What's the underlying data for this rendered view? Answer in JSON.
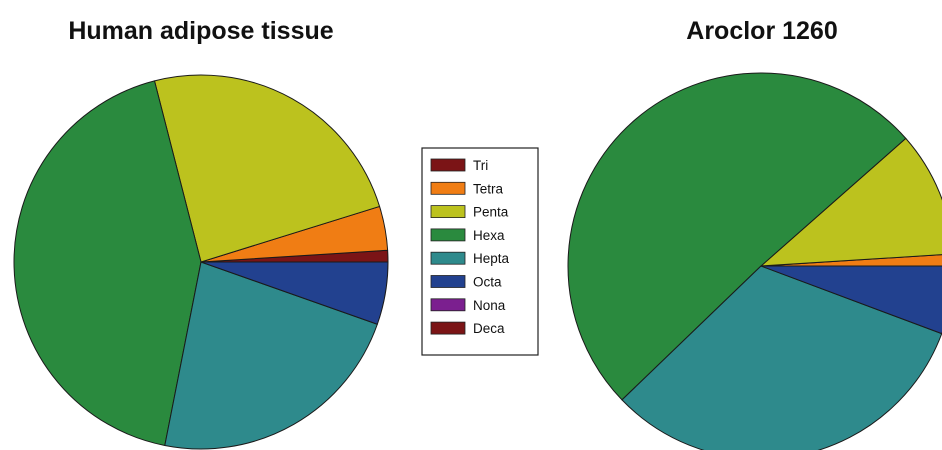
{
  "legend": {
    "items": [
      {
        "label": "Tri",
        "color": "#7b1416"
      },
      {
        "label": "Tetra",
        "color": "#f07d14"
      },
      {
        "label": "Penta",
        "color": "#bcc21e"
      },
      {
        "label": "Hexa",
        "color": "#2a8a3e"
      },
      {
        "label": "Hepta",
        "color": "#2e8a8c"
      },
      {
        "label": "Octa",
        "color": "#22418f"
      },
      {
        "label": "Nona",
        "color": "#7b1f8f"
      },
      {
        "label": "Deca",
        "color": "#7b1416"
      }
    ]
  },
  "chart_data": [
    {
      "type": "pie",
      "title": "Human adipose tissue",
      "categories": [
        "Tri",
        "Tetra",
        "Penta",
        "Hexa",
        "Hepta",
        "Octa",
        "Nona",
        "Deca"
      ],
      "values": [
        1.0,
        3.8,
        24.2,
        42.9,
        22.7,
        5.4,
        0,
        0
      ]
    },
    {
      "type": "pie",
      "title": "Aroclor 1260",
      "categories": [
        "Tri",
        "Tetra",
        "Penta",
        "Hexa",
        "Hepta",
        "Octa",
        "Nona",
        "Deca"
      ],
      "values": [
        0,
        1.0,
        10.5,
        50.7,
        32.1,
        5.7,
        0,
        0
      ]
    }
  ]
}
